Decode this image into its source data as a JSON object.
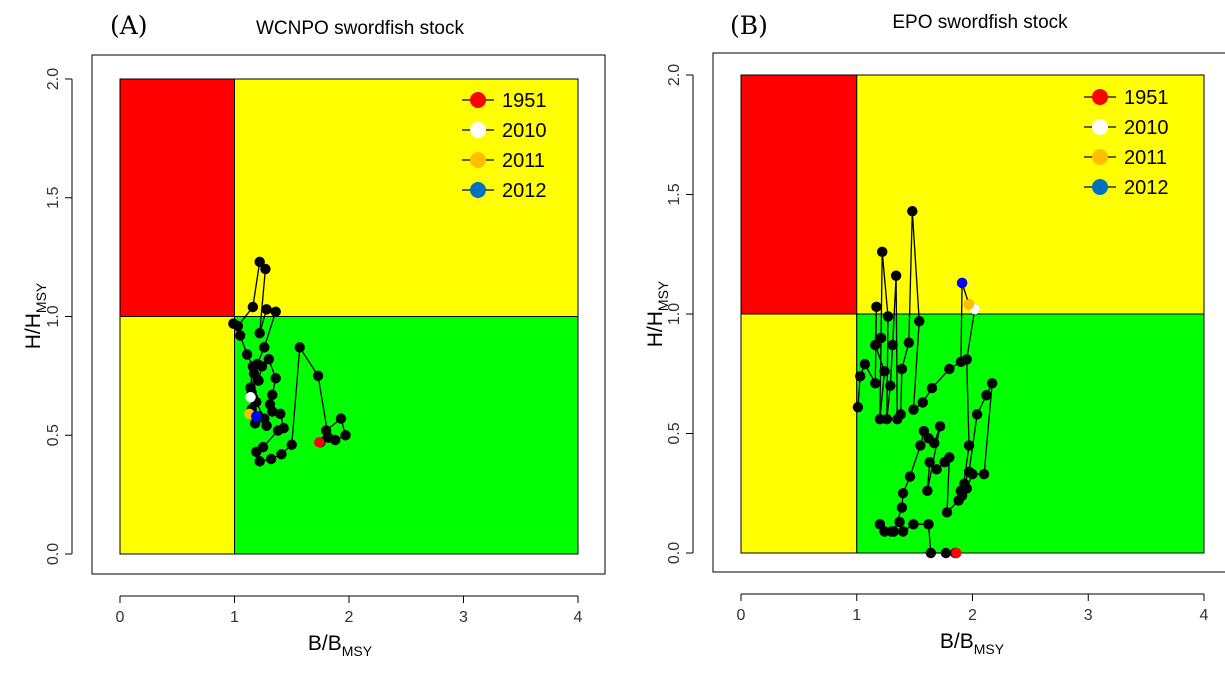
{
  "chart_data": [
    {
      "type": "scatter",
      "panel_label": "(A)",
      "title": "WCNPO swordfish stock",
      "xlabel": {
        "main": "B/B",
        "sub": "MSY"
      },
      "ylabel": {
        "main": "H/H",
        "sub": "MSY"
      },
      "xlim": [
        0,
        4
      ],
      "ylim": [
        0,
        2
      ],
      "xticks": [
        "0",
        "1",
        "2",
        "3",
        "4"
      ],
      "yticks": [
        "0.0",
        "0.5",
        "1.0",
        "1.5",
        "2.0"
      ],
      "zones": [
        {
          "name": "overfished-overfishing",
          "color": "#ff0000",
          "x": [
            0,
            1
          ],
          "y": [
            1,
            2
          ]
        },
        {
          "name": "overfishing",
          "color": "#ffff00",
          "x": [
            1,
            4
          ],
          "y": [
            1,
            2
          ]
        },
        {
          "name": "overfished",
          "color": "#ffff00",
          "x": [
            0,
            1
          ],
          "y": [
            0,
            1
          ]
        },
        {
          "name": "healthy",
          "color": "#00ff00",
          "x": [
            1,
            4
          ],
          "y": [
            0,
            1
          ]
        }
      ],
      "trajectory": [
        [
          1.75,
          0.47
        ],
        [
          1.8,
          0.52
        ],
        [
          1.93,
          0.57
        ],
        [
          1.97,
          0.5
        ],
        [
          1.88,
          0.48
        ],
        [
          1.82,
          0.49
        ],
        [
          1.73,
          0.75
        ],
        [
          1.57,
          0.87
        ],
        [
          1.5,
          0.46
        ],
        [
          1.41,
          0.42
        ],
        [
          1.32,
          0.4
        ],
        [
          1.22,
          0.39
        ],
        [
          1.19,
          0.43
        ],
        [
          1.25,
          0.45
        ],
        [
          1.38,
          0.52
        ],
        [
          1.43,
          0.53
        ],
        [
          1.4,
          0.59
        ],
        [
          1.33,
          0.6
        ],
        [
          1.31,
          0.63
        ],
        [
          1.33,
          0.67
        ],
        [
          1.36,
          0.74
        ],
        [
          1.3,
          0.82
        ],
        [
          1.24,
          0.79
        ],
        [
          1.21,
          0.73
        ],
        [
          1.17,
          0.76
        ],
        [
          1.15,
          0.68
        ],
        [
          1.19,
          0.64
        ],
        [
          1.26,
          0.57
        ],
        [
          1.28,
          0.54
        ],
        [
          1.21,
          0.58
        ],
        [
          1.18,
          0.55
        ],
        [
          1.15,
          0.61
        ],
        [
          1.14,
          0.7
        ],
        [
          1.16,
          0.79
        ],
        [
          1.11,
          0.84
        ],
        [
          1.05,
          0.92
        ],
        [
          0.99,
          0.97
        ],
        [
          1.03,
          0.96
        ],
        [
          1.16,
          1.04
        ],
        [
          1.22,
          1.23
        ],
        [
          1.27,
          1.2
        ],
        [
          1.22,
          0.93
        ],
        [
          1.28,
          1.03
        ],
        [
          1.36,
          1.02
        ],
        [
          1.26,
          0.87
        ],
        [
          1.2,
          0.8
        ],
        [
          1.16,
          0.66
        ]
      ],
      "year_points": [
        {
          "year": "1951",
          "x": 1.74,
          "y": 0.47,
          "color": "#ff0000"
        },
        {
          "year": "2010",
          "x": 1.14,
          "y": 0.66,
          "color": "#ffffff"
        },
        {
          "year": "2011",
          "x": 1.13,
          "y": 0.59,
          "color": "#ffbf00"
        },
        {
          "year": "2012",
          "x": 1.19,
          "y": 0.58,
          "color": "#0000ff"
        }
      ],
      "legend": [
        {
          "label": "1951",
          "color": "#ff0000"
        },
        {
          "label": "2010",
          "color": "#ffffff"
        },
        {
          "label": "2011",
          "color": "#ffbf00"
        },
        {
          "label": "2012",
          "color": "#0070c0"
        }
      ],
      "legend_position": "top-right"
    },
    {
      "type": "scatter",
      "panel_label": "(B)",
      "title": "EPO swordfish stock",
      "xlabel": {
        "main": "B/B",
        "sub": "MSY"
      },
      "ylabel": {
        "main": "H/H",
        "sub": "MSY"
      },
      "xlim": [
        0,
        4
      ],
      "ylim": [
        0,
        2
      ],
      "xticks": [
        "0",
        "1",
        "2",
        "3",
        "4"
      ],
      "yticks": [
        "0.0",
        "0.5",
        "1.0",
        "1.5",
        "2.0"
      ],
      "zones": [
        {
          "name": "overfished-overfishing",
          "color": "#ff0000",
          "x": [
            0,
            1
          ],
          "y": [
            1,
            2
          ]
        },
        {
          "name": "overfishing",
          "color": "#ffff00",
          "x": [
            1,
            4
          ],
          "y": [
            1,
            2
          ]
        },
        {
          "name": "overfished",
          "color": "#ffff00",
          "x": [
            0,
            1
          ],
          "y": [
            0,
            1
          ]
        },
        {
          "name": "healthy",
          "color": "#00ff00",
          "x": [
            1,
            4
          ],
          "y": [
            0,
            1
          ]
        }
      ],
      "trajectory": [
        [
          1.85,
          0.0
        ],
        [
          1.77,
          0.0
        ],
        [
          1.64,
          0.0
        ],
        [
          1.62,
          0.12
        ],
        [
          1.49,
          0.12
        ],
        [
          1.4,
          0.09
        ],
        [
          1.37,
          0.13
        ],
        [
          1.3,
          0.09
        ],
        [
          1.24,
          0.09
        ],
        [
          1.2,
          0.12
        ],
        [
          1.32,
          0.09
        ],
        [
          1.39,
          0.19
        ],
        [
          1.4,
          0.25
        ],
        [
          1.46,
          0.32
        ],
        [
          1.55,
          0.45
        ],
        [
          1.58,
          0.51
        ],
        [
          1.62,
          0.48
        ],
        [
          1.67,
          0.46
        ],
        [
          1.72,
          0.53
        ],
        [
          1.61,
          0.26
        ],
        [
          1.63,
          0.38
        ],
        [
          1.69,
          0.35
        ],
        [
          1.76,
          0.38
        ],
        [
          1.8,
          0.4
        ],
        [
          1.78,
          0.17
        ],
        [
          1.88,
          0.22
        ],
        [
          1.9,
          0.26
        ],
        [
          1.95,
          0.27
        ],
        [
          2.0,
          0.33
        ],
        [
          2.1,
          0.33
        ],
        [
          2.17,
          0.71
        ],
        [
          2.12,
          0.66
        ],
        [
          2.04,
          0.58
        ],
        [
          1.97,
          0.34
        ],
        [
          1.93,
          0.29
        ],
        [
          1.91,
          0.24
        ],
        [
          1.97,
          0.45
        ],
        [
          1.95,
          0.81
        ],
        [
          2.02,
          1.02
        ],
        [
          1.97,
          1.04
        ],
        [
          1.91,
          1.13
        ],
        [
          1.9,
          0.8
        ],
        [
          1.8,
          0.77
        ],
        [
          1.65,
          0.69
        ],
        [
          1.57,
          0.63
        ],
        [
          1.49,
          0.6
        ],
        [
          1.54,
          0.97
        ],
        [
          1.48,
          1.43
        ],
        [
          1.45,
          0.88
        ],
        [
          1.39,
          0.77
        ],
        [
          1.38,
          0.58
        ],
        [
          1.35,
          0.56
        ],
        [
          1.34,
          1.16
        ],
        [
          1.31,
          0.87
        ],
        [
          1.29,
          0.7
        ],
        [
          1.26,
          0.56
        ],
        [
          1.27,
          0.99
        ],
        [
          1.22,
          1.26
        ],
        [
          1.21,
          0.9
        ],
        [
          1.2,
          0.56
        ],
        [
          1.24,
          0.76
        ],
        [
          1.16,
          0.87
        ],
        [
          1.17,
          1.03
        ],
        [
          1.16,
          0.71
        ],
        [
          1.07,
          0.79
        ],
        [
          1.03,
          0.74
        ],
        [
          1.01,
          0.61
        ]
      ],
      "year_points": [
        {
          "year": "1951",
          "x": 1.86,
          "y": 0.0,
          "color": "#ff0000"
        },
        {
          "year": "2010",
          "x": 2.02,
          "y": 1.02,
          "color": "#ffffff"
        },
        {
          "year": "2011",
          "x": 1.97,
          "y": 1.04,
          "color": "#ffbf00"
        },
        {
          "year": "2012",
          "x": 1.91,
          "y": 1.13,
          "color": "#0000ff"
        }
      ],
      "legend": [
        {
          "label": "1951",
          "color": "#ff0000"
        },
        {
          "label": "2010",
          "color": "#ffffff"
        },
        {
          "label": "2011",
          "color": "#ffbf00"
        },
        {
          "label": "2012",
          "color": "#0070c0"
        }
      ],
      "legend_position": "top-right"
    }
  ]
}
